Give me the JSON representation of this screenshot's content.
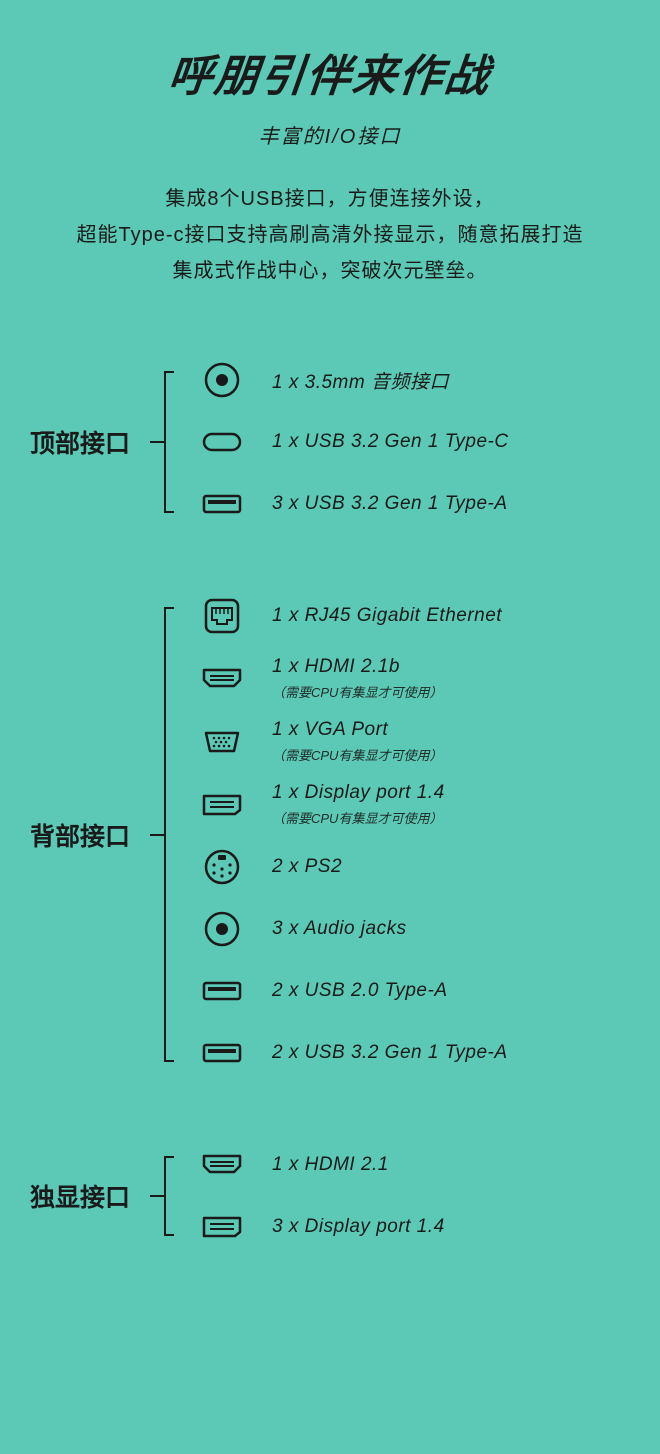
{
  "colors": {
    "background": "#5bc9b5",
    "ink": "#1a1a1a"
  },
  "header": {
    "title": "呼朋引伴来作战",
    "subtitle": "丰富的I/O接口",
    "description": "集成8个USB接口，方便连接外设，\n超能Type-c接口支持高刷高清外接显示，随意拓展打造\n集成式作战中心，突破次元壁垒。"
  },
  "sections": [
    {
      "label": "顶部接口",
      "ports": [
        {
          "icon": "audio-jack",
          "label": "1 x 3.5mm 音频接口"
        },
        {
          "icon": "usb-c",
          "label": "1 x USB 3.2 Gen 1 Type-C"
        },
        {
          "icon": "usb-a",
          "label": "3 x USB 3.2 Gen 1 Type-A"
        }
      ]
    },
    {
      "label": "背部接口",
      "ports": [
        {
          "icon": "rj45",
          "label": "1 x RJ45 Gigabit Ethernet"
        },
        {
          "icon": "hdmi",
          "label": "1 x HDMI 2.1b",
          "note": "（需要CPU有集显才可使用）"
        },
        {
          "icon": "vga",
          "label": "1 x VGA Port",
          "note": "（需要CPU有集显才可使用）"
        },
        {
          "icon": "displayport",
          "label": "1 x Display port 1.4",
          "note": "（需要CPU有集显才可使用）"
        },
        {
          "icon": "ps2",
          "label": "2 x PS2"
        },
        {
          "icon": "audio-jack",
          "label": "3 x Audio jacks"
        },
        {
          "icon": "usb-a",
          "label": "2 x USB 2.0 Type-A"
        },
        {
          "icon": "usb-a",
          "label": "2 x USB 3.2 Gen 1 Type-A"
        }
      ]
    },
    {
      "label": "独显接口",
      "ports": [
        {
          "icon": "hdmi",
          "label": "1 x HDMI 2.1"
        },
        {
          "icon": "displayport",
          "label": "3 x Display port 1.4"
        }
      ]
    }
  ]
}
